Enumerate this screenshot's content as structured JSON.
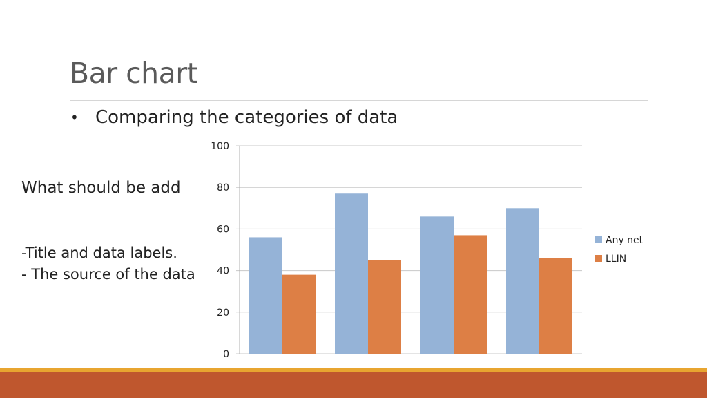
{
  "slide": {
    "title": "Bar chart",
    "bullet": "Comparing the categories of data",
    "question": "What should be add",
    "notes": [
      "-Title and data labels.",
      "- The source of the data"
    ]
  },
  "colors": {
    "any_net": "#95b3d7",
    "llin": "#dd7f45",
    "footer_band": "#bf572e",
    "footer_line": "#e8a530"
  },
  "chart_data": {
    "type": "bar",
    "categories": [
      "",
      "",
      "",
      ""
    ],
    "series": [
      {
        "name": "Any net",
        "values": [
          56,
          77,
          66,
          70
        ]
      },
      {
        "name": "LLIN",
        "values": [
          38,
          45,
          57,
          46
        ]
      }
    ],
    "yticks": [
      "0",
      "20",
      "40",
      "60",
      "80",
      "100"
    ],
    "ylim": [
      0,
      100
    ],
    "grid": true,
    "legend": "right"
  }
}
